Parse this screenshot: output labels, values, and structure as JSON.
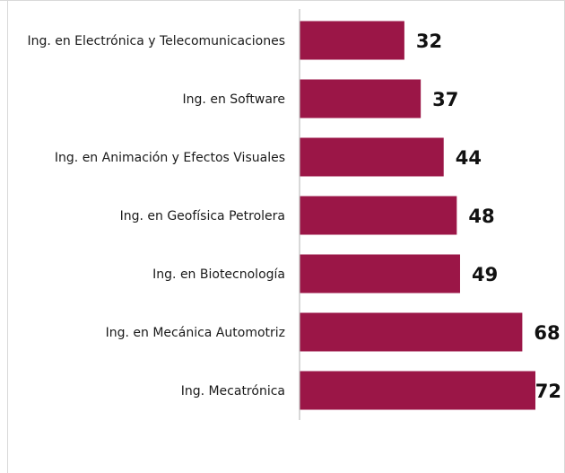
{
  "chart_data": {
    "type": "bar",
    "orientation": "horizontal",
    "categories": [
      "Ing. en Electrónica y Telecomunicaciones",
      "Ing. en Software",
      "Ing. en Animación y Efectos Visuales",
      "Ing. en Geofísica Petrolera",
      "Ing. en Biotecnología",
      "Ing. en Mecánica Automotriz",
      "Ing. Mecatrónica"
    ],
    "values": [
      32,
      37,
      44,
      48,
      49,
      68,
      72
    ],
    "value_labels": [
      "32",
      "37",
      "44",
      "48",
      "49",
      "68",
      "72"
    ],
    "bar_color": "#9b1647",
    "title": "",
    "xlabel": "",
    "ylabel": "",
    "xlim": [
      0,
      72
    ],
    "grid": false,
    "legend": "none"
  }
}
